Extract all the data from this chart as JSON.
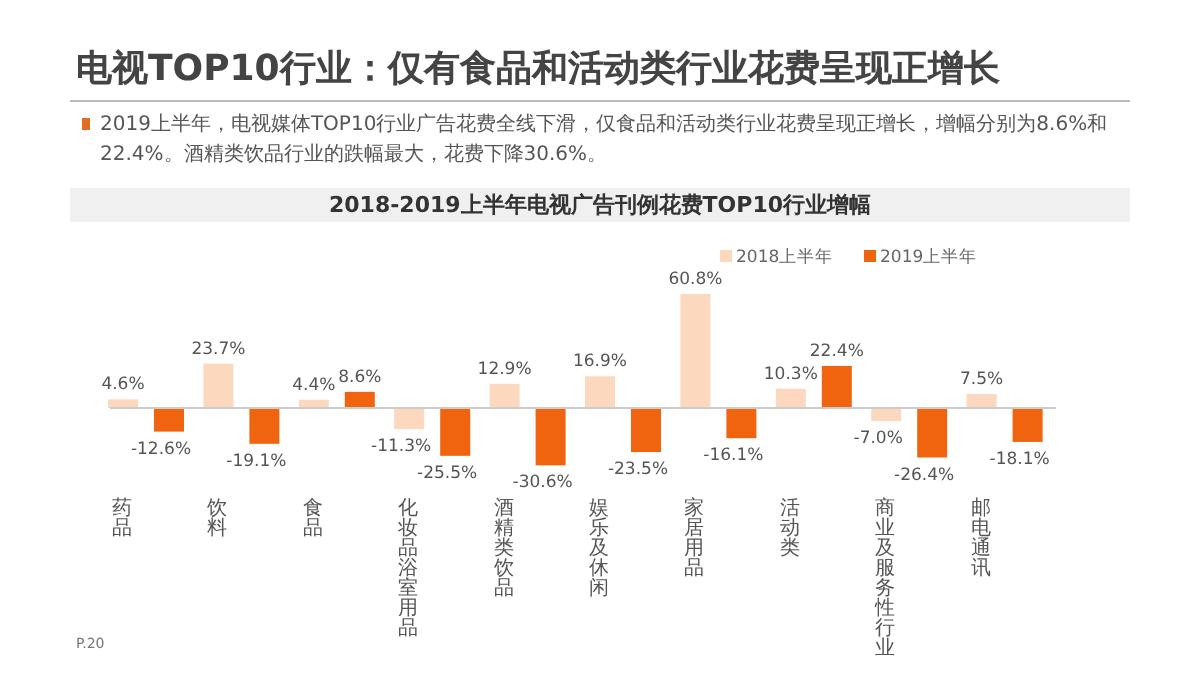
{
  "chart_data": {
    "type": "bar",
    "title": "电视TOP10行业：仅有食品和活动类行业花费呈现正增长",
    "subtitle": "2019上半年，电视媒体TOP10行业广告花费全线下滑，仅食品和活动类行业花费呈现正增长，增幅分别为8.6%和22.4%。酒精类饮品行业的跌幅最大，花费下降30.6%。",
    "annotations": [
      "2018-2019上半年电视广告刊例花费TOP10行业增幅",
      "P.20"
    ],
    "categories": [
      "药品",
      "饮料",
      "食品",
      "化妆品浴室用品",
      "酒精类饮品",
      "娱乐及休闲",
      "家居用品",
      "活动类",
      "商业及服务性行业",
      "邮电通讯"
    ],
    "series": [
      {
        "name": "2018上半年",
        "color": "#fcd8bf",
        "values": [
          4.6,
          23.7,
          4.4,
          -11.3,
          12.9,
          16.9,
          60.8,
          10.3,
          -7.0,
          7.5
        ],
        "value_labels": [
          "4.6%",
          "23.7%",
          "4.4%",
          "-11.3%",
          "12.9%",
          "16.9%",
          "60.8%",
          "10.3%",
          "-7.0%",
          "7.5%"
        ]
      },
      {
        "name": "2019上半年",
        "color": "#f0640f",
        "values": [
          -12.6,
          -19.1,
          8.6,
          -25.5,
          -30.6,
          -23.5,
          -16.1,
          22.4,
          -26.4,
          -18.1
        ],
        "value_labels": [
          "-12.6%",
          "-19.1%",
          "8.6%",
          "-25.5%",
          "-30.6%",
          "-23.5%",
          "-16.1%",
          "22.4%",
          "-26.4%",
          "-18.1%"
        ]
      }
    ],
    "legend": "top right"
  }
}
